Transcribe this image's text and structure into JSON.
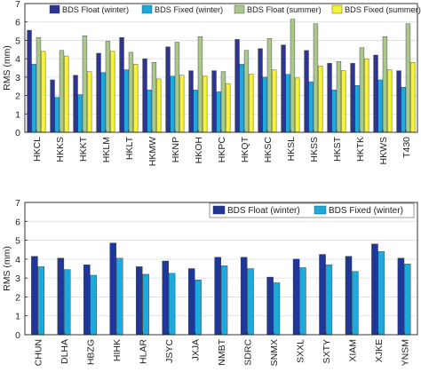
{
  "chart_data": [
    {
      "type": "bar",
      "title": "",
      "xlabel": "",
      "ylabel": "RMS (mm)",
      "ylim": [
        0,
        7
      ],
      "yticks": [
        0,
        1,
        2,
        3,
        4,
        5,
        6,
        7
      ],
      "grid": "y",
      "legend_position": "top",
      "categories": [
        "HKCL",
        "HKKS",
        "HKKT",
        "HKLM",
        "HKLT",
        "HKMW",
        "HKNP",
        "HKOH",
        "HKPC",
        "HKQT",
        "HKSC",
        "HKSL",
        "HKSS",
        "HKST",
        "HKTK",
        "HKWS",
        "T430"
      ],
      "series": [
        {
          "name": "BDS Float (winter)",
          "color": "#2d3494",
          "values": [
            5.55,
            2.85,
            3.1,
            4.3,
            5.15,
            4.0,
            4.65,
            3.35,
            3.35,
            5.05,
            4.55,
            4.75,
            4.45,
            3.75,
            3.75,
            4.2,
            3.35
          ]
        },
        {
          "name": "BDS Fixed (winter)",
          "color": "#1ea9dc",
          "values": [
            3.7,
            1.9,
            2.05,
            3.25,
            3.4,
            2.3,
            3.05,
            2.3,
            2.2,
            3.7,
            3.0,
            3.15,
            2.75,
            2.3,
            2.55,
            2.85,
            2.45
          ]
        },
        {
          "name": "BDS Float (summer)",
          "color": "#a9c88a",
          "values": [
            5.15,
            4.45,
            5.25,
            4.95,
            4.35,
            3.8,
            4.9,
            5.2,
            3.3,
            4.45,
            5.1,
            6.15,
            5.9,
            3.85,
            4.6,
            5.2,
            5.9
          ]
        },
        {
          "name": "BDS Fixed (summer)",
          "color": "#f7f33a",
          "values": [
            4.4,
            4.15,
            3.3,
            4.4,
            3.7,
            2.9,
            3.1,
            3.05,
            2.65,
            3.15,
            3.4,
            2.95,
            3.6,
            3.35,
            4.0,
            3.4,
            3.8
          ]
        }
      ]
    },
    {
      "type": "bar",
      "title": "",
      "xlabel": "",
      "ylabel": "RMS (mm)",
      "ylim": [
        0,
        7
      ],
      "yticks": [
        0,
        1,
        2,
        3,
        4,
        5,
        6,
        7
      ],
      "grid": "y",
      "legend_position": "top-right",
      "categories": [
        "CHUN",
        "DLHA",
        "HBZG",
        "HIHK",
        "HLAR",
        "JSYC",
        "JXJA",
        "NMBT",
        "SDRC",
        "SNMX",
        "SXXL",
        "SXTY",
        "XIAM",
        "XJKE",
        "YNSM"
      ],
      "series": [
        {
          "name": "BDS Float (winter)",
          "color": "#1f3799",
          "values": [
            4.15,
            4.05,
            3.7,
            4.85,
            3.6,
            3.9,
            3.5,
            4.1,
            4.1,
            3.05,
            4.0,
            4.25,
            4.15,
            4.8,
            4.05
          ]
        },
        {
          "name": "BDS Fixed (winter)",
          "color": "#1ea9dc",
          "values": [
            3.6,
            3.45,
            3.15,
            4.05,
            3.2,
            3.25,
            2.9,
            3.65,
            3.5,
            2.75,
            3.55,
            3.7,
            3.35,
            4.4,
            3.75
          ]
        }
      ]
    }
  ]
}
